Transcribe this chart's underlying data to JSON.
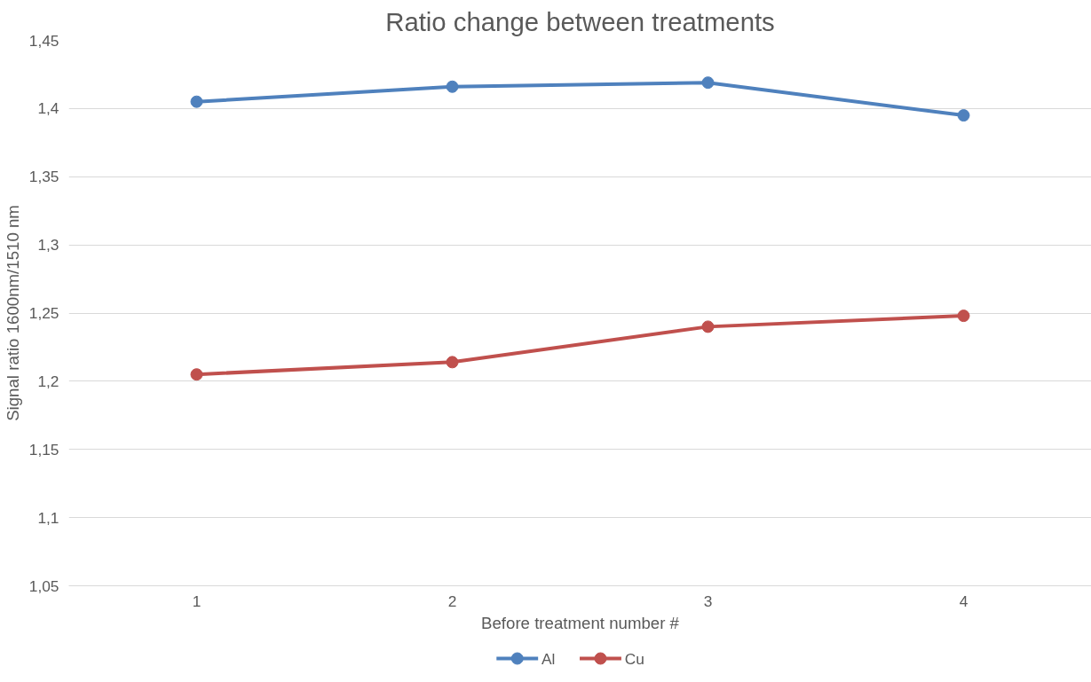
{
  "chart_data": {
    "type": "line",
    "title": "Ratio change between treatments",
    "xlabel": "Before treatment number #",
    "ylabel": "Signal ratio 1600nm/1510 nm",
    "categories": [
      "1",
      "2",
      "3",
      "4"
    ],
    "series": [
      {
        "name": "Al",
        "color": "#4f81bd",
        "values": [
          1.405,
          1.416,
          1.419,
          1.395
        ]
      },
      {
        "name": "Cu",
        "color": "#c0504d",
        "values": [
          1.205,
          1.214,
          1.24,
          1.248
        ]
      }
    ],
    "ylim": [
      1.05,
      1.45
    ],
    "yticks": [
      {
        "value": 1.05,
        "label": "1,05"
      },
      {
        "value": 1.1,
        "label": "1,1"
      },
      {
        "value": 1.15,
        "label": "1,15"
      },
      {
        "value": 1.2,
        "label": "1,2"
      },
      {
        "value": 1.25,
        "label": "1,25"
      },
      {
        "value": 1.3,
        "label": "1,3"
      },
      {
        "value": 1.35,
        "label": "1,35"
      },
      {
        "value": 1.4,
        "label": "1,4"
      },
      {
        "value": 1.45,
        "label": "1,45"
      }
    ],
    "grid": "y",
    "legend": "bottom",
    "marker": "circle",
    "line_style": "solid"
  }
}
